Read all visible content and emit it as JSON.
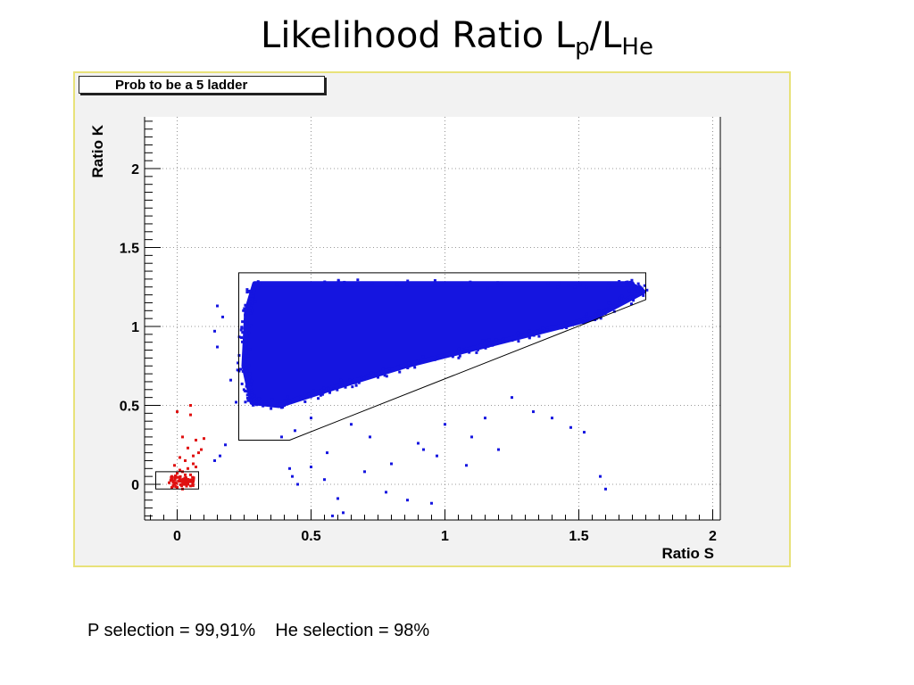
{
  "slide": {
    "title_main": "Likelihood Ratio L",
    "title_sub1": "p",
    "title_mid": "/L",
    "title_sub2": "He",
    "caption": "P selection = 99,91%    He selection = 98%"
  },
  "chart_data": {
    "type": "scatter",
    "title": "Prob to be a  5 ladder",
    "xlabel": "Ratio S",
    "ylabel": "Ratio K",
    "xlim": [
      -0.12,
      2.04
    ],
    "ylim": [
      -0.22,
      2.3
    ],
    "x_ticks": [
      0,
      0.5,
      1,
      1.5,
      2
    ],
    "x_tick_labels": [
      "0",
      "0.5",
      "1",
      "1.5",
      "2"
    ],
    "y_ticks": [
      0,
      0.5,
      1,
      1.5,
      2
    ],
    "y_tick_labels": [
      "0",
      "0.5",
      "1",
      "1.5",
      "2"
    ],
    "grid": true,
    "series": [
      {
        "color": "#1515e0",
        "dense_region_outline": [
          [
            0.29,
            1.27
          ],
          [
            1.69,
            1.27
          ],
          [
            1.74,
            1.22
          ],
          [
            1.55,
            1.05
          ],
          [
            1.2,
            0.9
          ],
          [
            0.85,
            0.75
          ],
          [
            0.6,
            0.62
          ],
          [
            0.38,
            0.5
          ],
          [
            0.28,
            0.52
          ],
          [
            0.25,
            0.75
          ],
          [
            0.26,
            1.1
          ]
        ],
        "outliers": [
          [
            0.15,
            1.13
          ],
          [
            0.14,
            0.97
          ],
          [
            0.17,
            1.06
          ],
          [
            0.15,
            0.87
          ],
          [
            0.2,
            0.66
          ],
          [
            0.22,
            0.52
          ],
          [
            0.16,
            0.18
          ],
          [
            0.14,
            0.15
          ],
          [
            0.18,
            0.25
          ],
          [
            0.42,
            0.1
          ],
          [
            0.43,
            0.05
          ],
          [
            0.45,
            0.0
          ],
          [
            0.5,
            0.11
          ],
          [
            0.55,
            0.03
          ],
          [
            0.6,
            -0.09
          ],
          [
            0.62,
            -0.18
          ],
          [
            0.58,
            -0.2
          ],
          [
            0.7,
            0.08
          ],
          [
            0.78,
            -0.05
          ],
          [
            0.8,
            0.13
          ],
          [
            0.86,
            -0.1
          ],
          [
            0.92,
            0.22
          ],
          [
            0.95,
            -0.12
          ],
          [
            1.1,
            0.3
          ],
          [
            1.2,
            0.22
          ],
          [
            1.4,
            0.42
          ],
          [
            1.47,
            0.36
          ],
          [
            1.52,
            0.33
          ],
          [
            1.58,
            0.05
          ],
          [
            1.6,
            -0.03
          ],
          [
            1.33,
            0.46
          ],
          [
            1.25,
            0.55
          ],
          [
            1.0,
            0.38
          ],
          [
            0.72,
            0.3
          ],
          [
            0.65,
            0.38
          ],
          [
            0.5,
            0.42
          ],
          [
            0.44,
            0.34
          ],
          [
            0.39,
            0.3
          ],
          [
            0.56,
            0.2
          ],
          [
            1.15,
            0.42
          ],
          [
            0.9,
            0.26
          ],
          [
            0.97,
            0.18
          ],
          [
            1.08,
            0.12
          ]
        ]
      },
      {
        "color": "#e01010",
        "cluster_center": [
          0.02,
          0.02
        ],
        "points": [
          [
            0.0,
            0.46
          ],
          [
            0.05,
            0.5
          ],
          [
            0.05,
            0.44
          ],
          [
            0.02,
            0.3
          ],
          [
            0.07,
            0.28
          ],
          [
            0.1,
            0.29
          ],
          [
            0.09,
            0.22
          ],
          [
            0.04,
            0.23
          ],
          [
            0.08,
            0.2
          ],
          [
            0.06,
            0.18
          ],
          [
            0.03,
            0.15
          ],
          [
            0.01,
            0.17
          ],
          [
            -0.01,
            0.12
          ],
          [
            0.04,
            0.1
          ],
          [
            0.07,
            0.11
          ],
          [
            0.02,
            0.08
          ],
          [
            0.05,
            0.06
          ],
          [
            0.0,
            0.07
          ],
          [
            -0.02,
            0.05
          ],
          [
            0.03,
            0.03
          ],
          [
            0.06,
            0.02
          ],
          [
            0.01,
            0.02
          ],
          [
            -0.01,
            0.0
          ],
          [
            -0.02,
            -0.02
          ],
          [
            0.02,
            -0.03
          ],
          [
            0.04,
            0.0
          ],
          [
            0.0,
            -0.02
          ],
          [
            -0.03,
            0.01
          ],
          [
            0.05,
            -0.01
          ],
          [
            0.03,
            0.06
          ],
          [
            0.01,
            0.09
          ],
          [
            0.06,
            0.13
          ]
        ]
      }
    ],
    "cut_regions": [
      {
        "name": "He selection box",
        "outline": [
          [
            0.23,
            1.34
          ],
          [
            1.75,
            1.34
          ],
          [
            1.75,
            1.17
          ],
          [
            0.42,
            0.28
          ],
          [
            0.23,
            0.28
          ]
        ]
      },
      {
        "name": "P selection box",
        "outline": [
          [
            -0.08,
            0.08
          ],
          [
            0.08,
            0.08
          ],
          [
            0.08,
            -0.03
          ],
          [
            -0.08,
            -0.03
          ]
        ]
      }
    ]
  }
}
